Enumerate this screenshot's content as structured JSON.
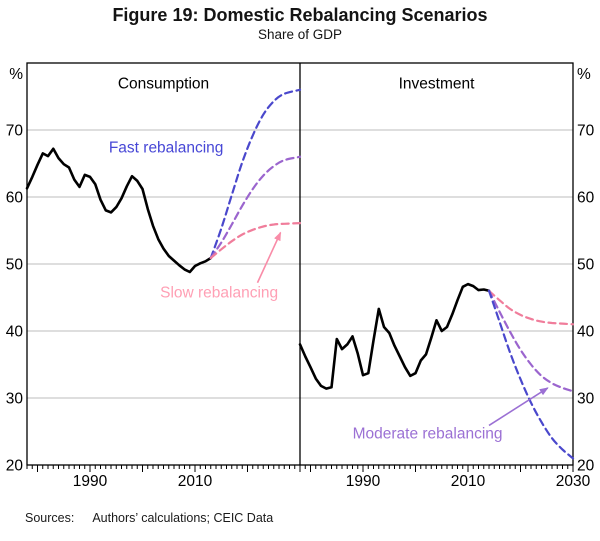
{
  "figure": {
    "title": "Figure 19: Domestic Rebalancing Scenarios",
    "subtitle": "Share of GDP"
  },
  "sources": {
    "label": "Sources:",
    "text": "Authors’ calculations; CEIC Data"
  },
  "colors": {
    "historical": "#000000",
    "fast": "#4a48cc",
    "moderate": "#9b65ce",
    "slow": "#f07d9b",
    "fast_label": "#4747d6",
    "moderate_label": "#9b70d4",
    "slow_label": "#ff9fb4",
    "grid": "#bcbcbc",
    "frame": "#000000"
  },
  "axis": {
    "unit": "%",
    "ylim": [
      20,
      80
    ],
    "yticks": [
      20,
      30,
      40,
      50,
      60,
      70
    ],
    "gridlines": [
      30,
      40,
      50,
      60,
      70
    ],
    "xlim": [
      1978,
      2030
    ],
    "minor_tick_step": 1,
    "major_tick_step": 10
  },
  "chart_data": [
    {
      "type": "line",
      "panel": "Consumption",
      "xlabel": "",
      "ylabel": "%",
      "xticks_labeled": [
        1990,
        2010
      ],
      "series": [
        {
          "name": "Consumption historical",
          "style": "solid",
          "color_key": "historical",
          "smooth": false,
          "points": [
            [
              1978,
              61.3
            ],
            [
              1979,
              63.0
            ],
            [
              1980,
              64.8
            ],
            [
              1981,
              66.5
            ],
            [
              1982,
              66.1
            ],
            [
              1983,
              67.2
            ],
            [
              1984,
              65.8
            ],
            [
              1985,
              64.9
            ],
            [
              1986,
              64.4
            ],
            [
              1987,
              62.6
            ],
            [
              1988,
              61.5
            ],
            [
              1989,
              63.3
            ],
            [
              1990,
              63.0
            ],
            [
              1991,
              61.9
            ],
            [
              1992,
              59.6
            ],
            [
              1993,
              58.0
            ],
            [
              1994,
              57.7
            ],
            [
              1995,
              58.5
            ],
            [
              1996,
              59.8
            ],
            [
              1997,
              61.6
            ],
            [
              1998,
              63.1
            ],
            [
              1999,
              62.4
            ],
            [
              2000,
              61.2
            ],
            [
              2001,
              58.2
            ],
            [
              2002,
              55.7
            ],
            [
              2003,
              53.7
            ],
            [
              2004,
              52.3
            ],
            [
              2005,
              51.2
            ],
            [
              2006,
              50.5
            ],
            [
              2007,
              49.8
            ],
            [
              2008,
              49.2
            ],
            [
              2009,
              48.8
            ],
            [
              2010,
              49.7
            ],
            [
              2011,
              50.1
            ],
            [
              2012,
              50.4
            ],
            [
              2013,
              50.9
            ]
          ]
        },
        {
          "name": "Fast rebalancing",
          "style": "dashed",
          "color_key": "fast",
          "smooth": true,
          "points": [
            [
              2013,
              50.9
            ],
            [
              2015,
              55.3
            ],
            [
              2017,
              60.3
            ],
            [
              2019,
              65.2
            ],
            [
              2021,
              69.2
            ],
            [
              2023,
              72.3
            ],
            [
              2025,
              74.3
            ],
            [
              2027,
              75.4
            ],
            [
              2030,
              76.0
            ]
          ]
        },
        {
          "name": "Moderate rebalancing",
          "style": "dashed",
          "color_key": "moderate",
          "smooth": true,
          "points": [
            [
              2013,
              50.9
            ],
            [
              2015,
              53.2
            ],
            [
              2017,
              55.9
            ],
            [
              2019,
              58.7
            ],
            [
              2021,
              61.2
            ],
            [
              2023,
              63.2
            ],
            [
              2025,
              64.6
            ],
            [
              2027,
              65.5
            ],
            [
              2030,
              66.0
            ]
          ]
        },
        {
          "name": "Slow rebalancing",
          "style": "dashed",
          "color_key": "slow",
          "smooth": true,
          "points": [
            [
              2013,
              50.9
            ],
            [
              2015,
              52.2
            ],
            [
              2017,
              53.4
            ],
            [
              2019,
              54.4
            ],
            [
              2021,
              55.1
            ],
            [
              2023,
              55.6
            ],
            [
              2025,
              55.9
            ],
            [
              2027,
              56.0
            ],
            [
              2030,
              56.1
            ]
          ]
        }
      ],
      "annotations": [
        {
          "text": "Fast rebalancing",
          "color_key": "fast_label",
          "x": 2004.5,
          "y": 67.3
        },
        {
          "text": "Slow rebalancing",
          "color_key": "slow_label",
          "x": 2014.6,
          "y": 45.6,
          "arrow": {
            "color": "#f98ca8",
            "from": [
              2021.9,
              47.2
            ],
            "to": [
              2026.3,
              54.7
            ]
          }
        }
      ]
    },
    {
      "type": "line",
      "panel": "Investment",
      "xlabel": "",
      "ylabel": "%",
      "xticks_labeled": [
        1990,
        2010,
        2030
      ],
      "series": [
        {
          "name": "Investment historical",
          "style": "solid",
          "color_key": "historical",
          "smooth": false,
          "points": [
            [
              1978,
              38.0
            ],
            [
              1979,
              36.2
            ],
            [
              1980,
              34.6
            ],
            [
              1981,
              32.9
            ],
            [
              1982,
              31.8
            ],
            [
              1983,
              31.4
            ],
            [
              1984,
              31.6
            ],
            [
              1985,
              38.8
            ],
            [
              1986,
              37.3
            ],
            [
              1987,
              38.0
            ],
            [
              1988,
              39.2
            ],
            [
              1989,
              36.6
            ],
            [
              1990,
              33.4
            ],
            [
              1991,
              33.7
            ],
            [
              1992,
              38.6
            ],
            [
              1993,
              43.3
            ],
            [
              1994,
              40.6
            ],
            [
              1995,
              39.7
            ],
            [
              1996,
              37.8
            ],
            [
              1997,
              36.2
            ],
            [
              1998,
              34.6
            ],
            [
              1999,
              33.3
            ],
            [
              2000,
              33.7
            ],
            [
              2001,
              35.6
            ],
            [
              2002,
              36.5
            ],
            [
              2003,
              39.0
            ],
            [
              2004,
              41.6
            ],
            [
              2005,
              40.0
            ],
            [
              2006,
              40.6
            ],
            [
              2007,
              42.5
            ],
            [
              2008,
              44.6
            ],
            [
              2009,
              46.6
            ],
            [
              2010,
              47.0
            ],
            [
              2011,
              46.7
            ],
            [
              2012,
              46.1
            ],
            [
              2013,
              46.2
            ],
            [
              2014,
              46.0
            ]
          ]
        },
        {
          "name": "Slow rebalancing",
          "style": "dashed",
          "color_key": "slow",
          "smooth": true,
          "points": [
            [
              2014,
              46.0
            ],
            [
              2016,
              44.6
            ],
            [
              2018,
              43.3
            ],
            [
              2020,
              42.4
            ],
            [
              2022,
              41.8
            ],
            [
              2024,
              41.4
            ],
            [
              2026,
              41.2
            ],
            [
              2028,
              41.1
            ],
            [
              2030,
              41.0
            ]
          ]
        },
        {
          "name": "Moderate rebalancing",
          "style": "dashed",
          "color_key": "moderate",
          "smooth": true,
          "points": [
            [
              2014,
              46.0
            ],
            [
              2016,
              42.9
            ],
            [
              2018,
              39.9
            ],
            [
              2020,
              37.2
            ],
            [
              2022,
              35.0
            ],
            [
              2024,
              33.3
            ],
            [
              2026,
              32.2
            ],
            [
              2028,
              31.5
            ],
            [
              2030,
              31.0
            ]
          ]
        },
        {
          "name": "Fast rebalancing",
          "style": "dashed",
          "color_key": "fast",
          "smooth": true,
          "points": [
            [
              2014,
              46.0
            ],
            [
              2016,
              41.4
            ],
            [
              2018,
              36.8
            ],
            [
              2020,
              32.8
            ],
            [
              2022,
              29.3
            ],
            [
              2024,
              26.4
            ],
            [
              2026,
              24.0
            ],
            [
              2028,
              22.3
            ],
            [
              2030,
              21.0
            ]
          ]
        }
      ],
      "annotations": [
        {
          "text": "Moderate rebalancing",
          "color_key": "moderate_label",
          "x": 2002.3,
          "y": 24.7,
          "arrow": {
            "color": "#9b70d4",
            "from": [
              2014.0,
              25.9
            ],
            "to": [
              2025.2,
              31.5
            ]
          }
        }
      ]
    }
  ]
}
